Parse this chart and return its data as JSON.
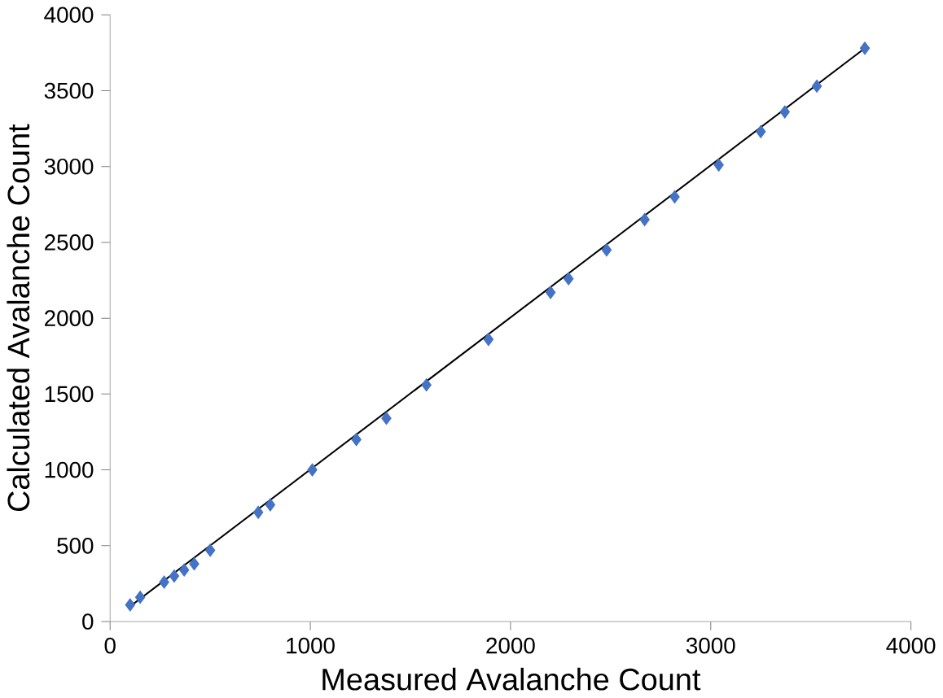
{
  "chart_data": {
    "type": "scatter",
    "xlabel": "Measured Avalanche Count",
    "ylabel": "Calculated Avalanche Count",
    "xlim": [
      0,
      4000
    ],
    "ylim": [
      0,
      4000
    ],
    "xticks": [
      0,
      1000,
      2000,
      3000,
      4000
    ],
    "yticks": [
      0,
      500,
      1000,
      1500,
      2000,
      2500,
      3000,
      3500,
      4000
    ],
    "grid": false,
    "marker": "diamond",
    "series": [
      {
        "color": "#4472c4",
        "x": [
          100,
          150,
          270,
          320,
          370,
          420,
          500,
          740,
          800,
          1010,
          1230,
          1380,
          1580,
          1890,
          2200,
          2290,
          2480,
          2670,
          2820,
          3040,
          3250,
          3370,
          3530,
          3770
        ],
        "values": [
          110,
          160,
          260,
          300,
          340,
          380,
          470,
          720,
          770,
          1000,
          1200,
          1340,
          1560,
          1860,
          2170,
          2260,
          2450,
          2650,
          2800,
          3010,
          3230,
          3360,
          3530,
          3780
        ]
      },
      {
        "type": "line",
        "color": "#000000",
        "x": [
          100,
          3770
        ],
        "values": [
          100,
          3780
        ],
        "marker": "none",
        "line_style": "solid"
      }
    ]
  }
}
